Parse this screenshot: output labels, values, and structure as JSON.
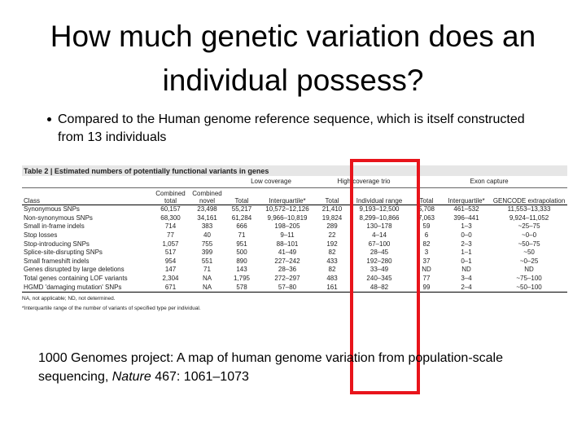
{
  "slide": {
    "title": "How much genetic variation does an individual possess?",
    "bullet": "Compared to the Human genome reference sequence, which is itself constructed from 13 individuals",
    "table": {
      "title": "Table 2 | Estimated numbers of potentially functional variants in genes",
      "groups": [
        "Low coverage",
        "High coverage trio",
        "Exon capture"
      ],
      "columns": [
        "Class",
        "Combined total",
        "Combined novel",
        "Total",
        "Interquartile*",
        "Total",
        "Individual range",
        "Total",
        "Interquartile*",
        "GENCODE extrapolation"
      ],
      "rows": [
        [
          "Synonymous SNPs",
          "60,157",
          "23,498",
          "55,217",
          "10,572–12,126",
          "21,410",
          "9,193–12,500",
          "5,708",
          "461–532",
          "11,553–13,333"
        ],
        [
          "Non-synonymous SNPs",
          "68,300",
          "34,161",
          "61,284",
          "9,966–10,819",
          "19,824",
          "8,299–10,866",
          "7,063",
          "396–441",
          "9,924–11,052"
        ],
        [
          "Small in-frame indels",
          "714",
          "383",
          "666",
          "198–205",
          "289",
          "130–178",
          "59",
          "1–3",
          "~25–75"
        ],
        [
          "Stop losses",
          "77",
          "40",
          "71",
          "9–11",
          "22",
          "4–14",
          "6",
          "0–0",
          "~0–0"
        ],
        [
          "Stop-introducing SNPs",
          "1,057",
          "755",
          "951",
          "88–101",
          "192",
          "67–100",
          "82",
          "2–3",
          "~50–75"
        ],
        [
          "Splice-site-disrupting SNPs",
          "517",
          "399",
          "500",
          "41–49",
          "82",
          "28–45",
          "3",
          "1–1",
          "~50"
        ],
        [
          "Small frameshift indels",
          "954",
          "551",
          "890",
          "227–242",
          "433",
          "192–280",
          "37",
          "0–1",
          "~0–25"
        ],
        [
          "Genes disrupted by large deletions",
          "147",
          "71",
          "143",
          "28–36",
          "82",
          "33–49",
          "ND",
          "ND",
          "ND"
        ],
        [
          "Total genes containing LOF variants",
          "2,304",
          "NA",
          "1,795",
          "272–297",
          "483",
          "240–345",
          "77",
          "3–4",
          "~75–100"
        ],
        [
          "HGMD 'damaging mutation' SNPs",
          "671",
          "NA",
          "578",
          "57–80",
          "161",
          "48–82",
          "99",
          "2–4",
          "~50–100"
        ]
      ],
      "footnotes": [
        "NA, not applicable; ND, not determined.",
        "*Interquartile range of the number of variants of specified type per individual."
      ]
    },
    "citation": {
      "text": "1000 Genomes project: A map of human genome variation from population-scale sequencing, ",
      "journal": "Nature",
      "details": " 467: 1061–1073"
    }
  }
}
